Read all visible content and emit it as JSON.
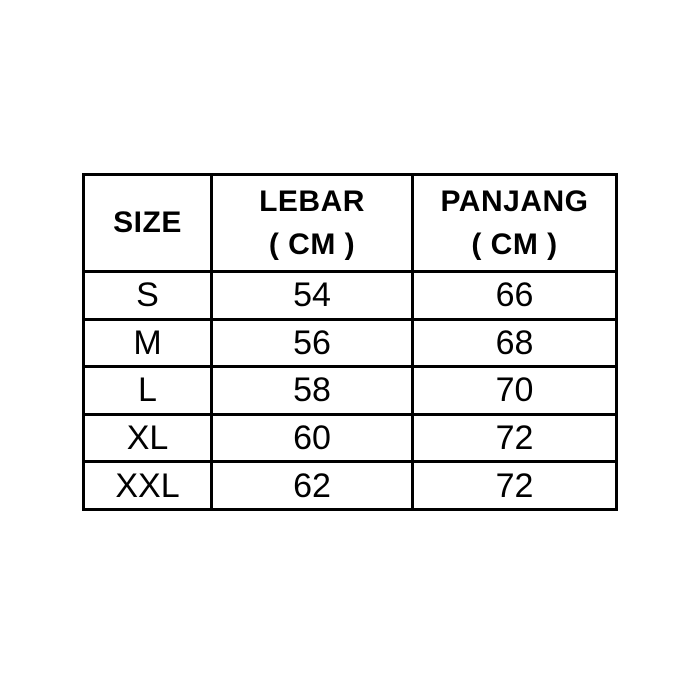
{
  "canvas": {
    "background": "#ffffff"
  },
  "chart_data": {
    "type": "table",
    "columns": [
      {
        "line1": "SIZE",
        "line2": ""
      },
      {
        "line1": "LEBAR",
        "line2": "( CM )"
      },
      {
        "line1": "PANJANG",
        "line2": "( CM )"
      }
    ],
    "rows": [
      [
        "S",
        "54",
        "66"
      ],
      [
        "M",
        "56",
        "68"
      ],
      [
        "L",
        "58",
        "70"
      ],
      [
        "XL",
        "60",
        "72"
      ],
      [
        "XXL",
        "62",
        "72"
      ]
    ],
    "styles": {
      "border_color": "#000000",
      "text_color": "#000000",
      "background": "#ffffff"
    }
  }
}
